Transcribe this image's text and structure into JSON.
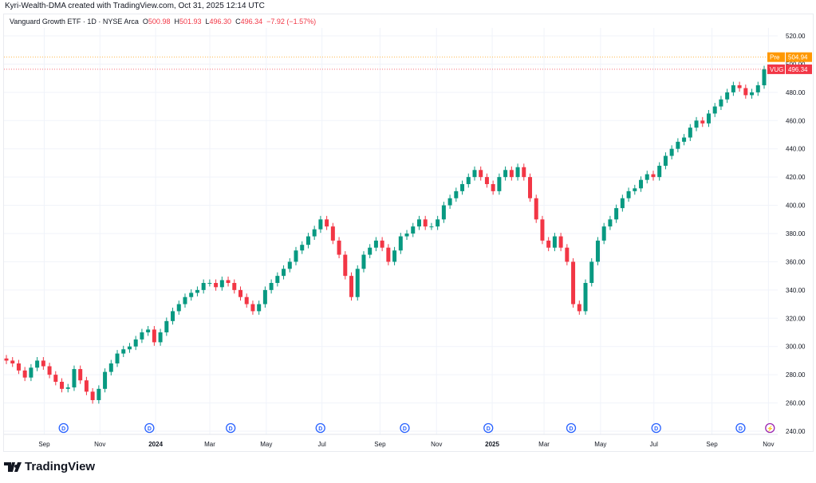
{
  "credit": "Kyri-Wealth-DMA created with TradingView.com, Oct 31, 2025 12:14 UTC",
  "legend": {
    "symbol": "Vanguard Growth ETF · 1D · NYSE Arca",
    "o_label": "O",
    "o": "500.98",
    "h_label": "H",
    "h": "501.93",
    "l_label": "L",
    "l": "496.30",
    "c_label": "C",
    "c": "496.34",
    "change": "−7.92 (−1.57%)"
  },
  "brand": "TradingView",
  "colors": {
    "up": "#089981",
    "down": "#f23645",
    "pre": "#ff9800",
    "grid": "#f0f3fa",
    "dividend": "#2962ff",
    "earnings": "#9c27b0"
  },
  "chart_data": {
    "type": "candlestick",
    "title": "Vanguard Growth ETF · 1D · NYSE Arca",
    "ylim": [
      240,
      520
    ],
    "yticks": [
      240,
      260,
      280,
      300,
      320,
      340,
      360,
      380,
      400,
      420,
      440,
      460,
      480,
      500,
      520
    ],
    "xticks": [
      {
        "label": "Sep",
        "pos": 0.052
      },
      {
        "label": "Nov",
        "pos": 0.124
      },
      {
        "label": "2024",
        "pos": 0.196
      },
      {
        "label": "Mar",
        "pos": 0.266
      },
      {
        "label": "May",
        "pos": 0.339
      },
      {
        "label": "Jul",
        "pos": 0.411
      },
      {
        "label": "Sep",
        "pos": 0.486
      },
      {
        "label": "Nov",
        "pos": 0.559
      },
      {
        "label": "2025",
        "pos": 0.631
      },
      {
        "label": "Mar",
        "pos": 0.698
      },
      {
        "label": "May",
        "pos": 0.771
      },
      {
        "label": "Jul",
        "pos": 0.84
      },
      {
        "label": "Sep",
        "pos": 0.915
      },
      {
        "label": "Nov",
        "pos": 0.988
      }
    ],
    "weekly_closes": [
      290,
      288,
      283,
      278,
      285,
      290,
      286,
      280,
      275,
      270,
      271,
      284,
      276,
      268,
      262,
      270,
      282,
      288,
      295,
      298,
      300,
      305,
      310,
      312,
      303,
      310,
      318,
      325,
      330,
      335,
      338,
      340,
      345,
      345,
      342,
      347,
      345,
      340,
      335,
      330,
      325,
      330,
      340,
      345,
      350,
      355,
      360,
      368,
      372,
      378,
      383,
      390,
      385,
      375,
      365,
      350,
      335,
      355,
      365,
      370,
      375,
      370,
      360,
      368,
      378,
      380,
      385,
      390,
      385,
      385,
      390,
      400,
      405,
      410,
      415,
      420,
      425,
      420,
      415,
      410,
      420,
      425,
      420,
      427,
      420,
      405,
      390,
      375,
      370,
      378,
      370,
      360,
      330,
      325,
      345,
      360,
      375,
      385,
      390,
      398,
      405,
      410,
      412,
      418,
      422,
      420,
      428,
      435,
      440,
      445,
      448,
      455,
      460,
      458,
      465,
      470,
      475,
      480,
      485,
      483,
      478,
      480,
      485,
      496.34
    ],
    "price_lines": [
      {
        "label": "Pre",
        "value": 504.94,
        "text": "504.94"
      },
      {
        "label": "VUG",
        "value": 496.34,
        "text": "496.34"
      }
    ],
    "events": [
      {
        "type": "D",
        "pos": 0.077
      },
      {
        "type": "D",
        "pos": 0.188
      },
      {
        "type": "D",
        "pos": 0.293
      },
      {
        "type": "D",
        "pos": 0.409
      },
      {
        "type": "D",
        "pos": 0.518
      },
      {
        "type": "D",
        "pos": 0.626
      },
      {
        "type": "D",
        "pos": 0.733
      },
      {
        "type": "D",
        "pos": 0.843
      },
      {
        "type": "D",
        "pos": 0.952
      },
      {
        "type": "earnings",
        "pos": 0.99
      }
    ]
  }
}
